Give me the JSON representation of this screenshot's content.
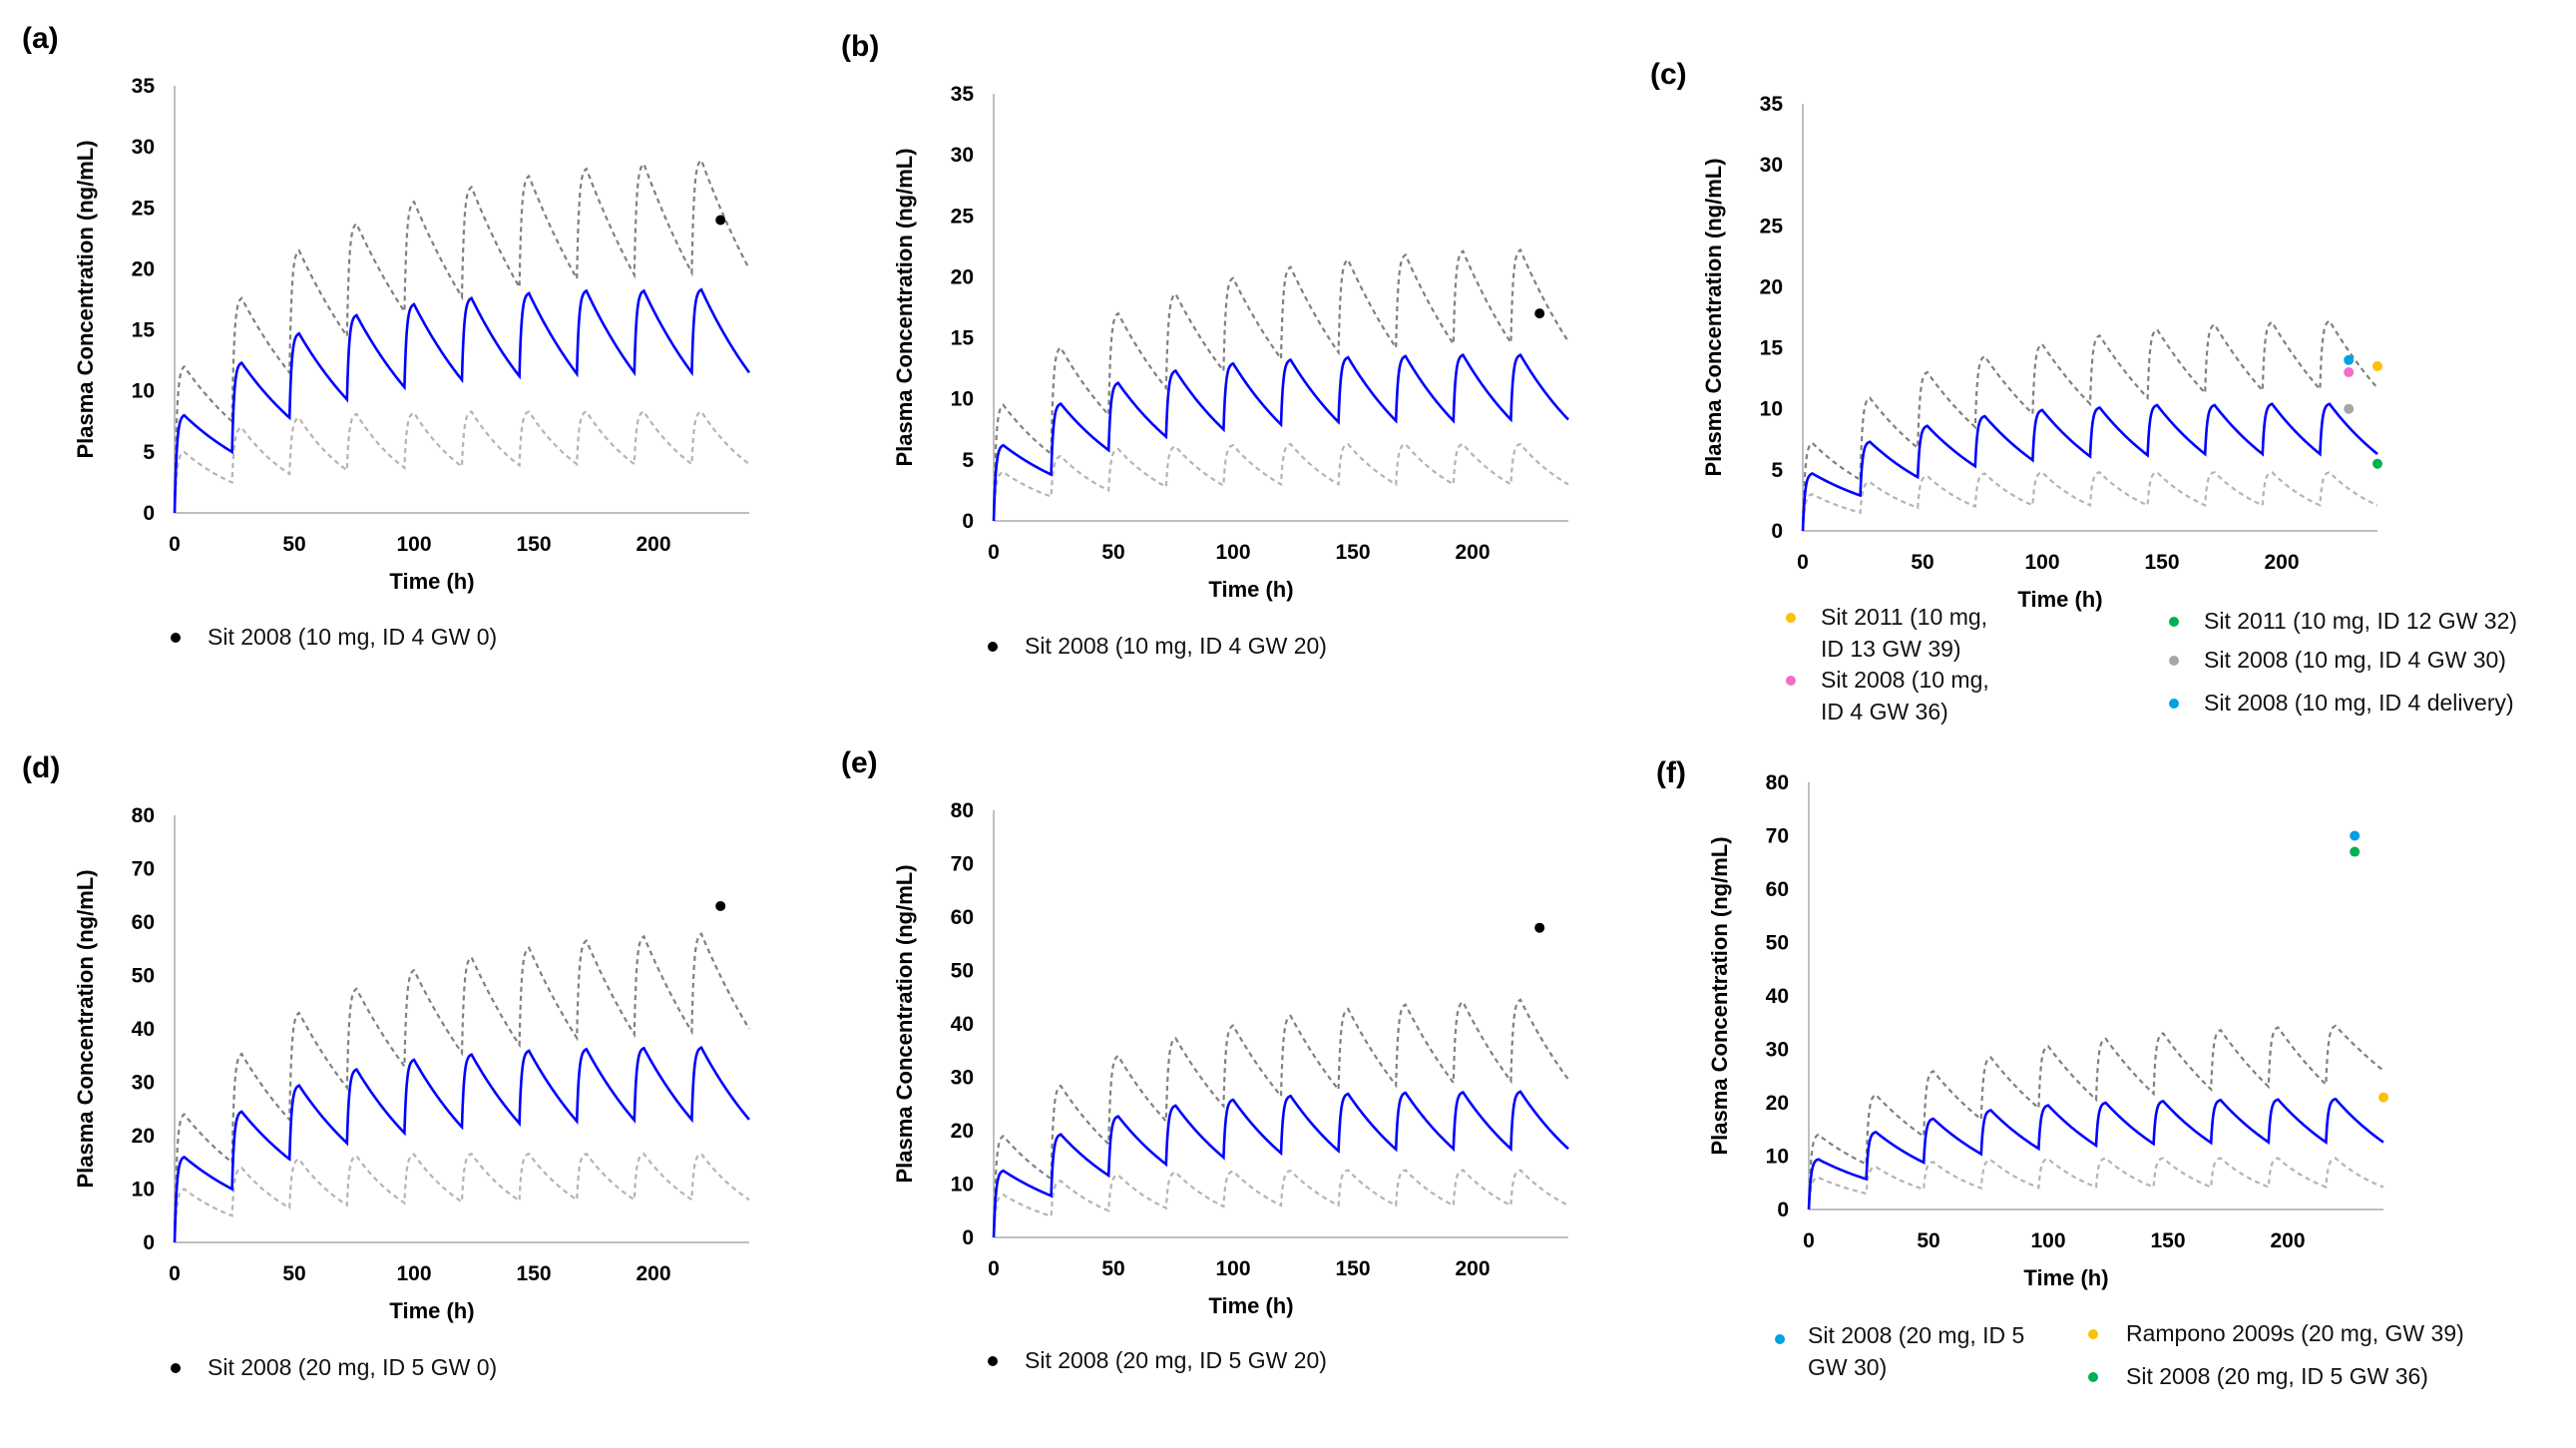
{
  "chart_data": [
    {
      "id": "a",
      "type": "line",
      "panel_label": "(a)",
      "xlabel": "Time (h)",
      "ylabel": "Plasma Concentration (ng/mL)",
      "xlim": [
        0,
        240
      ],
      "xticks": [
        0,
        50,
        100,
        150,
        200
      ],
      "ylim": [
        0,
        35
      ],
      "yticks": [
        0,
        5,
        10,
        15,
        20,
        25,
        30,
        35
      ],
      "dose_interval_h": 24,
      "series": [
        {
          "name": "mean",
          "color": "#0000ff",
          "dashed": false,
          "peaks": [
            8,
            12.3,
            14.7,
            16.2,
            17.1,
            17.6,
            18,
            18.2,
            18.2,
            18.3
          ],
          "troughs": [
            5,
            7.8,
            9.3,
            10.3,
            10.9,
            11.2,
            11.4,
            11.5,
            11.5,
            11.5
          ]
        },
        {
          "name": "upper",
          "color": "#808080",
          "dashed": true,
          "peaks": [
            12,
            17.6,
            21.5,
            23.7,
            25.5,
            26.7,
            27.6,
            28.2,
            28.6,
            28.9
          ],
          "troughs": [
            7.5,
            11.5,
            14.5,
            16.5,
            17.7,
            18.5,
            19.2,
            19.5,
            19.7,
            20
          ]
        },
        {
          "name": "lower",
          "color": "#b4b4b4",
          "dashed": true,
          "peaks": [
            5,
            7,
            7.8,
            8.1,
            8.2,
            8.3,
            8.3,
            8.3,
            8.3,
            8.3
          ],
          "troughs": [
            2.5,
            3.2,
            3.5,
            3.7,
            3.8,
            3.9,
            4,
            4,
            4,
            4
          ]
        }
      ],
      "observed": [
        {
          "label": "Sit 2008 (10 mg, ID 4  GW 0)",
          "color": "#000000",
          "x": 228,
          "y": 24
        }
      ]
    },
    {
      "id": "b",
      "type": "line",
      "panel_label": "(b)",
      "xlabel": "Time (h)",
      "ylabel": "Plasma Concentration (ng/mL)",
      "xlim": [
        0,
        240
      ],
      "xticks": [
        0,
        50,
        100,
        150,
        200
      ],
      "ylim": [
        0,
        35
      ],
      "yticks": [
        0,
        5,
        10,
        15,
        20,
        25,
        30,
        35
      ],
      "dose_interval_h": 24,
      "series": [
        {
          "name": "mean",
          "color": "#0000ff",
          "dashed": false,
          "peaks": [
            6.2,
            9.6,
            11.3,
            12.3,
            12.9,
            13.2,
            13.4,
            13.5,
            13.6,
            13.6
          ],
          "troughs": [
            3.8,
            5.8,
            6.9,
            7.5,
            7.9,
            8.1,
            8.2,
            8.2,
            8.3,
            8.3
          ]
        },
        {
          "name": "upper",
          "color": "#808080",
          "dashed": true,
          "peaks": [
            9.5,
            14.2,
            17,
            18.6,
            19.9,
            20.8,
            21.4,
            21.8,
            22.1,
            22.2
          ],
          "troughs": [
            5.5,
            8.7,
            10.9,
            12.3,
            13.3,
            13.8,
            14.2,
            14.5,
            14.6,
            14.7
          ]
        },
        {
          "name": "lower",
          "color": "#b4b4b4",
          "dashed": true,
          "peaks": [
            4,
            5.3,
            5.9,
            6.1,
            6.2,
            6.3,
            6.3,
            6.3,
            6.3,
            6.3
          ],
          "troughs": [
            2,
            2.5,
            2.8,
            2.9,
            3,
            3,
            3,
            3,
            3,
            3
          ]
        }
      ],
      "observed": [
        {
          "label": "Sit 2008 (10 mg, ID 4  GW 20)",
          "color": "#000000",
          "x": 228,
          "y": 17
        }
      ]
    },
    {
      "id": "c",
      "type": "line",
      "panel_label": "(c)",
      "xlabel": "Time (h)",
      "ylabel": "Plasma Concentration (ng/mL)",
      "xlim": [
        0,
        240
      ],
      "xticks": [
        0,
        50,
        100,
        150,
        200
      ],
      "ylim": [
        0,
        35
      ],
      "yticks": [
        0,
        5,
        10,
        15,
        20,
        25,
        30,
        35
      ],
      "dose_interval_h": 24,
      "series": [
        {
          "name": "mean",
          "color": "#0000ff",
          "dashed": false,
          "peaks": [
            4.7,
            7.3,
            8.6,
            9.4,
            9.9,
            10.1,
            10.3,
            10.3,
            10.4,
            10.4
          ],
          "troughs": [
            2.9,
            4.4,
            5.3,
            5.8,
            6.1,
            6.2,
            6.3,
            6.3,
            6.3,
            6.3
          ]
        },
        {
          "name": "upper",
          "color": "#808080",
          "dashed": true,
          "peaks": [
            7.2,
            10.9,
            13,
            14.3,
            15.3,
            16,
            16.5,
            16.9,
            17.1,
            17.2
          ],
          "troughs": [
            4.2,
            6.8,
            8.5,
            9.6,
            10.4,
            10.9,
            11.3,
            11.5,
            11.6,
            11.7
          ]
        },
        {
          "name": "lower",
          "color": "#b4b4b4",
          "dashed": true,
          "peaks": [
            3,
            4,
            4.5,
            4.7,
            4.8,
            4.8,
            4.8,
            4.8,
            4.8,
            4.8
          ],
          "troughs": [
            1.5,
            1.9,
            2,
            2.1,
            2.1,
            2.1,
            2.1,
            2.1,
            2.1,
            2.1
          ]
        }
      ],
      "observed": [
        {
          "label": "Sit 2011 (10 mg, ID 13 GW 39)",
          "lines": [
            "Sit 2011 (10 mg,",
            "ID 13 GW 39)"
          ],
          "color": "#ffc000",
          "x": 240,
          "y": 13.5
        },
        {
          "label": "Sit 2008 (10 mg, ID 4 GW 36)",
          "lines": [
            "Sit 2008 (10 mg,",
            "ID 4 GW 36)"
          ],
          "color": "#f06ec8",
          "x": 228,
          "y": 13
        },
        {
          "label": "Sit 2011 (10 mg, ID 12 GW 32)",
          "lines": [
            "Sit 2011 (10 mg, ID 12 GW 32)"
          ],
          "color": "#00b050",
          "x": 240,
          "y": 5.5
        },
        {
          "label": "Sit 2008 (10 mg, ID 4  GW 30)",
          "lines": [
            "Sit 2008 (10 mg, ID 4  GW 30)"
          ],
          "color": "#a6a6a6",
          "x": 228,
          "y": 10
        },
        {
          "label": "Sit 2008 (10 mg, ID 4  delivery)",
          "lines": [
            "Sit 2008 (10 mg, ID 4  delivery)"
          ],
          "color": "#00a0e6",
          "x": 228,
          "y": 14
        }
      ]
    },
    {
      "id": "d",
      "type": "line",
      "panel_label": "(d)",
      "xlabel": "Time (h)",
      "ylabel": "Plasma Concentration (ng/mL)",
      "xlim": [
        0,
        240
      ],
      "xticks": [
        0,
        50,
        100,
        150,
        200
      ],
      "ylim": [
        0,
        80
      ],
      "yticks": [
        0,
        10,
        20,
        30,
        40,
        50,
        60,
        70,
        80
      ],
      "dose_interval_h": 24,
      "series": [
        {
          "name": "mean",
          "color": "#0000ff",
          "dashed": false,
          "peaks": [
            16,
            24.5,
            29.4,
            32.4,
            34.2,
            35.2,
            35.9,
            36.2,
            36.4,
            36.5
          ],
          "troughs": [
            10,
            15.6,
            18.6,
            20.5,
            21.6,
            22.3,
            22.7,
            22.9,
            23,
            23
          ]
        },
        {
          "name": "upper",
          "color": "#808080",
          "dashed": true,
          "peaks": [
            24,
            35.3,
            43,
            47.5,
            51,
            53.4,
            55.2,
            56.5,
            57.3,
            57.8
          ],
          "troughs": [
            15,
            23,
            29,
            33,
            35.5,
            37,
            38.3,
            39,
            39.5,
            40
          ]
        },
        {
          "name": "lower",
          "color": "#b4b4b4",
          "dashed": true,
          "peaks": [
            10,
            14,
            15.6,
            16.2,
            16.5,
            16.6,
            16.6,
            16.6,
            16.6,
            16.6
          ],
          "troughs": [
            5,
            6.5,
            7,
            7.4,
            7.6,
            7.8,
            8,
            8,
            8,
            8
          ]
        }
      ],
      "observed": [
        {
          "label": "Sit 2008 (20 mg,  ID 5 GW 0)",
          "color": "#000000",
          "x": 228,
          "y": 63
        }
      ]
    },
    {
      "id": "e",
      "type": "line",
      "panel_label": "(e)",
      "xlabel": "Time (h)",
      "ylabel": "Plasma Concentration (ng/mL)",
      "xlim": [
        0,
        240
      ],
      "xticks": [
        0,
        50,
        100,
        150,
        200
      ],
      "ylim": [
        0,
        80
      ],
      "yticks": [
        0,
        10,
        20,
        30,
        40,
        50,
        60,
        70,
        80
      ],
      "dose_interval_h": 24,
      "series": [
        {
          "name": "mean",
          "color": "#0000ff",
          "dashed": false,
          "peaks": [
            12.5,
            19.3,
            22.7,
            24.7,
            25.8,
            26.5,
            26.9,
            27.1,
            27.2,
            27.3
          ],
          "troughs": [
            7.8,
            11.6,
            13.7,
            15,
            15.8,
            16.2,
            16.5,
            16.6,
            16.6,
            16.6
          ]
        },
        {
          "name": "upper",
          "color": "#808080",
          "dashed": true,
          "peaks": [
            19,
            28.4,
            34,
            37.3,
            39.7,
            41.5,
            42.8,
            43.6,
            44.1,
            44.5
          ],
          "troughs": [
            11,
            17.5,
            21.8,
            24.6,
            26.5,
            27.7,
            28.5,
            29,
            29.3,
            29.6
          ]
        },
        {
          "name": "lower",
          "color": "#b4b4b4",
          "dashed": true,
          "peaks": [
            8,
            10.6,
            11.7,
            12.2,
            12.4,
            12.5,
            12.6,
            12.6,
            12.6,
            12.6
          ],
          "troughs": [
            4,
            5,
            5.5,
            5.8,
            6,
            6,
            6,
            6,
            6,
            6
          ]
        }
      ],
      "observed": [
        {
          "label": "Sit 2008 (20 mg, ID 5 GW 20)",
          "color": "#000000",
          "x": 228,
          "y": 58
        }
      ]
    },
    {
      "id": "f",
      "type": "line",
      "panel_label": "(f)",
      "xlabel": "Time (h)",
      "ylabel": "Plasma Concentration (ng/mL)",
      "xlim": [
        0,
        240
      ],
      "xticks": [
        0,
        50,
        100,
        150,
        200
      ],
      "ylim": [
        0,
        80
      ],
      "yticks": [
        0,
        10,
        20,
        30,
        40,
        50,
        60,
        70,
        80
      ],
      "dose_interval_h": 24,
      "series": [
        {
          "name": "mean",
          "color": "#0000ff",
          "dashed": false,
          "peaks": [
            9.4,
            14.5,
            17,
            18.6,
            19.5,
            20,
            20.3,
            20.5,
            20.6,
            20.7
          ],
          "troughs": [
            5.7,
            8.8,
            10.4,
            11.4,
            12,
            12.3,
            12.5,
            12.6,
            12.6,
            12.6
          ]
        },
        {
          "name": "upper",
          "color": "#808080",
          "dashed": true,
          "peaks": [
            14,
            21.5,
            25.9,
            28.5,
            30.6,
            32,
            33,
            33.6,
            34.1,
            34.4
          ],
          "troughs": [
            8.5,
            13.7,
            16.9,
            19,
            20.6,
            21.7,
            22.5,
            23,
            23.4,
            26
          ]
        },
        {
          "name": "lower",
          "color": "#b4b4b4",
          "dashed": true,
          "peaks": [
            6,
            8,
            8.9,
            9.3,
            9.5,
            9.6,
            9.6,
            9.6,
            9.6,
            9.6
          ],
          "troughs": [
            3,
            3.8,
            4,
            4.1,
            4.2,
            4.2,
            4.2,
            4.2,
            4.2,
            4.2
          ]
        }
      ],
      "observed": [
        {
          "label": "Sit 2008 (20 mg, ID 5 GW 30)",
          "lines": [
            "Sit 2008 (20 mg, ID 5",
            "GW 30)"
          ],
          "color": "#00a0e6",
          "x": 228,
          "y": 70
        },
        {
          "label": "Rampono 2009s (20 mg, GW 39)",
          "lines": [
            "Rampono 2009s (20 mg, GW 39)"
          ],
          "color": "#ffc000",
          "x": 240,
          "y": 21
        },
        {
          "label": "Sit 2008 (20 mg, ID 5 GW 36)",
          "lines": [
            "Sit 2008 (20 mg, ID 5 GW 36)"
          ],
          "color": "#00b050",
          "x": 228,
          "y": 67
        }
      ]
    }
  ]
}
